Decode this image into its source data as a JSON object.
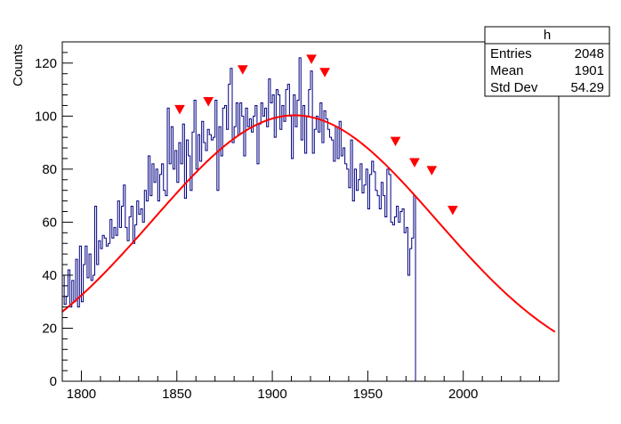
{
  "chart_data": {
    "type": "histogram",
    "title": "",
    "xlabel": "",
    "ylabel": "Counts",
    "xlim": [
      1790,
      2050
    ],
    "ylim": [
      0,
      128
    ],
    "x_ticks": [
      1800,
      1850,
      1900,
      1950,
      2000
    ],
    "y_ticks": [
      0,
      20,
      40,
      60,
      80,
      100,
      120
    ],
    "grid": false,
    "colors": {
      "histogram": "#000080",
      "fit": "#ff0000",
      "markers": "#ff0000"
    },
    "histogram": {
      "bin_start": 1790,
      "bin_width": 1,
      "counts": [
        40,
        29,
        32,
        42,
        28,
        38,
        30,
        46,
        28,
        51,
        30,
        44,
        51,
        39,
        48,
        38,
        40,
        66,
        44,
        53,
        50,
        55,
        54,
        51,
        52,
        61,
        54,
        58,
        55,
        68,
        58,
        66,
        74,
        58,
        53,
        62,
        66,
        52,
        59,
        68,
        63,
        65,
        60,
        72,
        68,
        85,
        70,
        82,
        75,
        80,
        68,
        78,
        82,
        72,
        70,
        103,
        82,
        96,
        80,
        87,
        75,
        90,
        82,
        97,
        69,
        91,
        85,
        72,
        94,
        106,
        80,
        93,
        83,
        98,
        90,
        87,
        95,
        93,
        91,
        92,
        106,
        72,
        96,
        85,
        103,
        104,
        95,
        112,
        118,
        90,
        96,
        105,
        93,
        105,
        100,
        85,
        103,
        96,
        99,
        94,
        100,
        104,
        82,
        97,
        105,
        100,
        103,
        96,
        114,
        105,
        108,
        92,
        110,
        108,
        95,
        104,
        98,
        110,
        112,
        100,
        84,
        108,
        96,
        106,
        122,
        91,
        104,
        86,
        100,
        110,
        117,
        86,
        95,
        100,
        94,
        105,
        90,
        102,
        99,
        95,
        92,
        91,
        83,
        96,
        84,
        98,
        85,
        88,
        82,
        80,
        73,
        91,
        68,
        80,
        72,
        76,
        82,
        71,
        74,
        80,
        65,
        78,
        83,
        79,
        72,
        70,
        65,
        75,
        70,
        62,
        80,
        78,
        60,
        59,
        62,
        66,
        60,
        64,
        65,
        56,
        58,
        40,
        50,
        54,
        70,
        0,
        0
      ]
    },
    "fit": {
      "function": "gaussian",
      "amplitude": 100.3,
      "mean": 1911.7,
      "sigma": 74.3,
      "x_range": [
        1790,
        2048
      ]
    },
    "peaks": [
      {
        "x": 1851.5,
        "y": 103
      },
      {
        "x": 1866.5,
        "y": 106
      },
      {
        "x": 1884.5,
        "y": 118
      },
      {
        "x": 1920.5,
        "y": 122
      },
      {
        "x": 1927.5,
        "y": 117
      },
      {
        "x": 1964.5,
        "y": 91
      },
      {
        "x": 1974.5,
        "y": 83
      },
      {
        "x": 1983.5,
        "y": 80
      },
      {
        "x": 1994.5,
        "y": 65
      }
    ]
  },
  "stats_box": {
    "title": "h",
    "rows": [
      {
        "label": "Entries",
        "value": "2048"
      },
      {
        "label": "Mean",
        "value": "1901"
      },
      {
        "label": "Std Dev",
        "value": "54.29"
      }
    ]
  }
}
